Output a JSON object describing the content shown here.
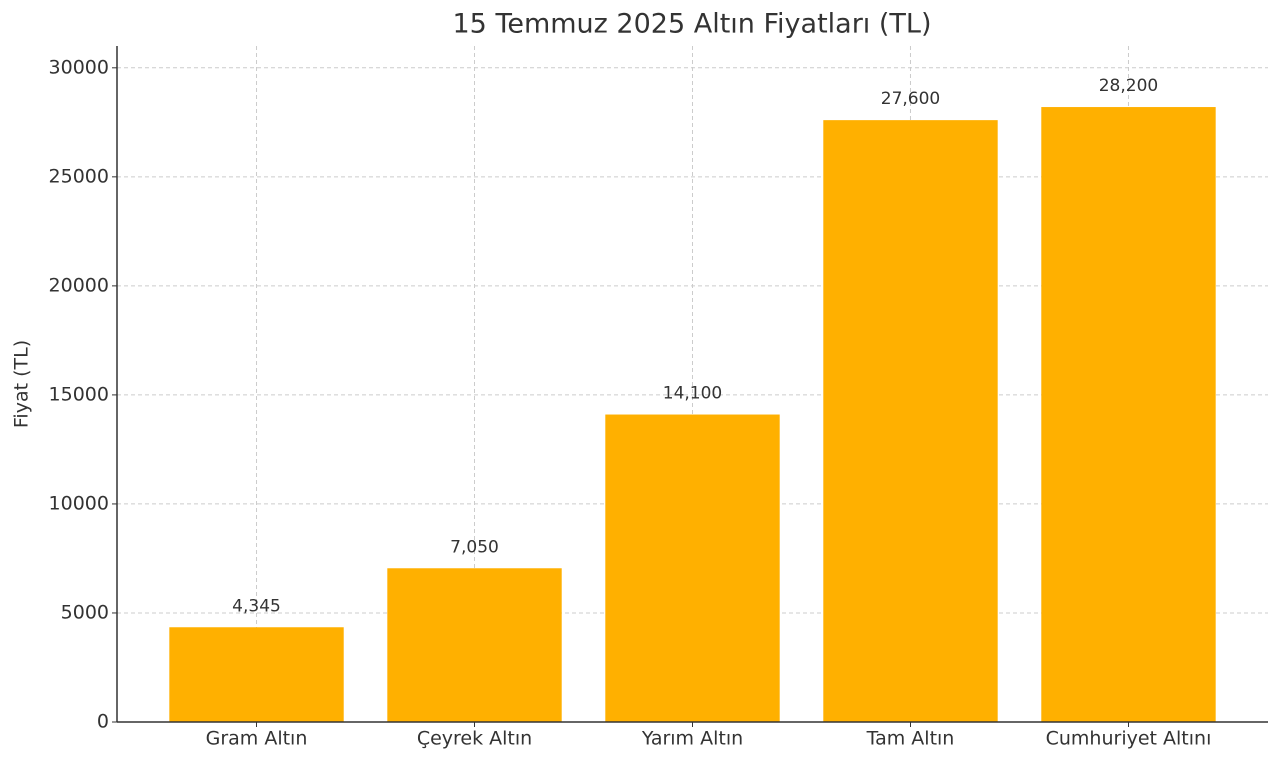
{
  "chart_data": {
    "type": "bar",
    "title": "15 Temmuz 2025 Altın Fiyatları (TL)",
    "y_label": "Fiyat (TL)",
    "categories": [
      "Gram Altın",
      "Çeyrek Altın",
      "Yarım Altın",
      "Tam Altın",
      "Cumhuriyet Altını"
    ],
    "values": [
      4345,
      7050,
      14100,
      27600,
      28200
    ],
    "value_labels": [
      "4,345",
      "7,050",
      "14,100",
      "27,600",
      "28,200"
    ],
    "color": "#ffb000",
    "ylim": [
      0,
      31000
    ],
    "yticks": [
      0,
      5000,
      10000,
      15000,
      20000,
      25000,
      30000
    ],
    "grid": true
  }
}
